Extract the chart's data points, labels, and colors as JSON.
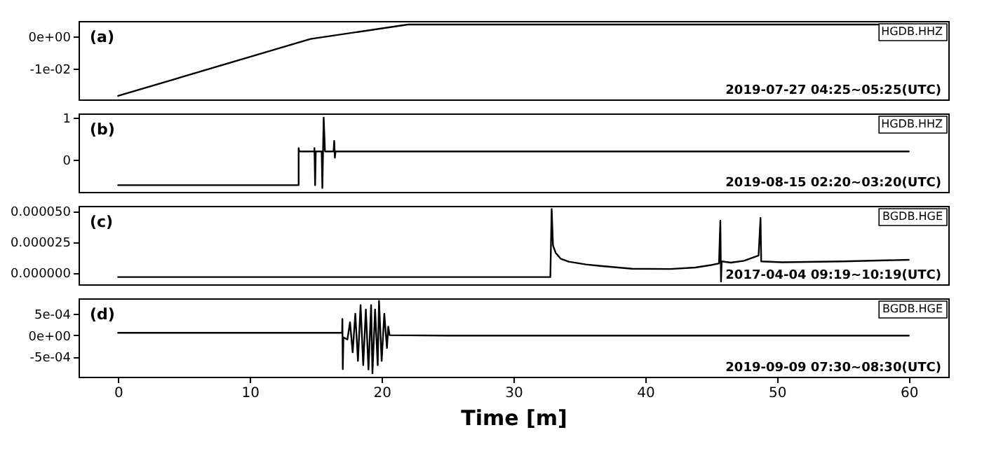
{
  "chart_data": [
    {
      "type": "line",
      "annotations": [
        "(a)",
        "HGDB.HHZ",
        "2019-07-27 04:25~05:25(UTC)"
      ],
      "x": [
        0,
        14.6,
        22.0,
        60
      ],
      "series": [
        {
          "color": "#000000",
          "values": [
            -0.0185,
            -0.0007,
            0.0038,
            0.0038
          ]
        }
      ],
      "xlim": [
        -3,
        63
      ],
      "ylim": [
        -0.0196,
        0.0049
      ],
      "yticks": [
        {
          "value": 0,
          "label": "0e+00"
        },
        {
          "value": -0.01,
          "label": "-1e-02"
        }
      ],
      "tick_labels": "y"
    },
    {
      "type": "line",
      "annotations": [
        "(b)",
        "HGDB.HHZ",
        "2019-08-15 02:20~03:20(UTC)"
      ],
      "x": [
        0,
        13.7,
        13.7,
        13.75,
        14.9,
        14.9,
        14.95,
        15.0,
        15.45,
        15.5,
        15.6,
        15.7,
        16.35,
        16.4,
        16.45,
        16.5,
        60
      ],
      "series": [
        {
          "color": "#000000",
          "values": [
            -0.6,
            -0.6,
            0.28,
            0.2,
            0.2,
            0.28,
            -0.6,
            0.2,
            0.2,
            -0.67,
            1.0,
            0.2,
            0.2,
            0.45,
            0.05,
            0.2,
            0.2
          ]
        }
      ],
      "xlim": [
        -3,
        63
      ],
      "ylim": [
        -0.76,
        1.1
      ],
      "yticks": [
        0,
        1
      ],
      "tick_labels": "y"
    },
    {
      "type": "line",
      "annotations": [
        "(c)",
        "BGDB.HGE",
        "2017-04-04 09:19~10:19(UTC)"
      ],
      "x": [
        0,
        32.8,
        32.9,
        33.0,
        33.2,
        33.6,
        34.2,
        35.5,
        36.6,
        39,
        41.9,
        43.8,
        45.0,
        45.6,
        45.7,
        45.75,
        45.8,
        46.5,
        47.5,
        48.6,
        48.75,
        48.8,
        50.4,
        55,
        60
      ],
      "series": [
        {
          "color": "#000000",
          "values": [
            -3.7e-06,
            -3.7e-06,
            5.15e-05,
            2.2e-05,
            1.6e-05,
            1.1e-05,
            8.8e-06,
            6.5e-06,
            5.3e-06,
            3e-06,
            2.8e-06,
            4e-06,
            6e-06,
            7.4e-06,
            4.2e-05,
            -7.3e-06,
            9e-06,
            8e-06,
            9.5e-06,
            1.37e-05,
            4.43e-05,
            9e-06,
            8.3e-06,
            9e-06,
            1.03e-05
          ]
        }
      ],
      "xlim": [
        -3,
        63
      ],
      "ylim": [
        -9.6e-06,
        5.4e-05
      ],
      "yticks": [
        {
          "value": 0,
          "label": "0.000000"
        },
        {
          "value": 2.5e-05,
          "label": "0.000025"
        },
        {
          "value": 5e-05,
          "label": "0.000050"
        }
      ],
      "tick_labels": "y"
    },
    {
      "type": "line",
      "annotations": [
        "(d)",
        "BGDB.HGE",
        "2019-09-09 07:30~08:30(UTC)"
      ],
      "xlabel": "Time [m]",
      "x": [
        0,
        17.0,
        17.02,
        17.05,
        17.1,
        17.4,
        17.6,
        17.8,
        18.0,
        18.2,
        18.4,
        18.6,
        18.8,
        19.0,
        19.2,
        19.3,
        19.5,
        19.7,
        19.8,
        20.0,
        20.2,
        20.4,
        20.5,
        20.6,
        25,
        60
      ],
      "series": [
        {
          "color": "#000000",
          "values": [
            5.5e-05,
            5.5e-05,
            0.00038,
            -0.00079,
            -5e-05,
            -0.0001,
            0.0003,
            -0.0004,
            0.0005,
            -0.0006,
            0.0007,
            -0.0007,
            0.0006,
            -0.0008,
            0.0007,
            -0.00089,
            0.0006,
            -0.0007,
            0.0008,
            -0.0006,
            0.0005,
            -0.0003,
            0.0002,
            0,
            -1e-05,
            -1e-05
          ]
        }
      ],
      "xlim": [
        -3,
        63
      ],
      "ylim": [
        -0.00097,
        0.00086
      ],
      "xticks": [
        0,
        10,
        20,
        30,
        40,
        50,
        60
      ],
      "yticks": [
        {
          "value": 0.0005,
          "label": "5e-04"
        },
        {
          "value": 0,
          "label": "0e+00"
        },
        {
          "value": -0.0005,
          "label": "-5e-04"
        }
      ]
    }
  ]
}
